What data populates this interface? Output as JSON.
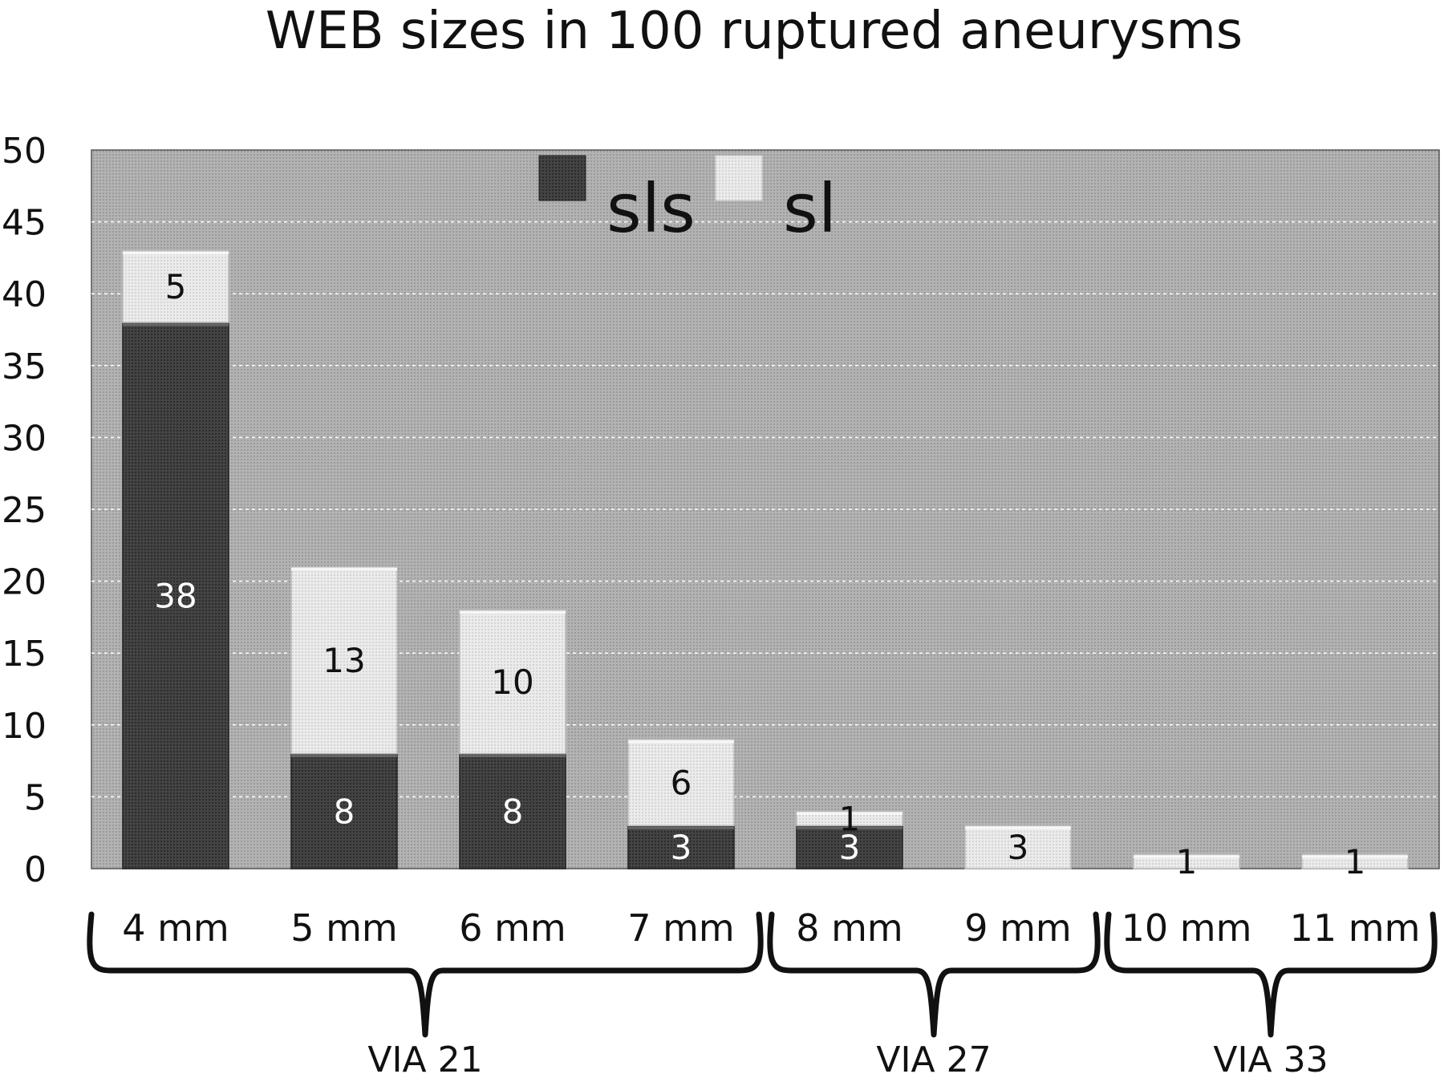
{
  "chart_data": {
    "type": "bar",
    "stacked": true,
    "title": "WEB sizes in 100 ruptured aneurysms",
    "categories": [
      "4 mm",
      "5 mm",
      "6 mm",
      "7 mm",
      "8 mm",
      "9 mm",
      "10 mm",
      "11 mm"
    ],
    "series": [
      {
        "name": "sls",
        "color": "#3a3a3a",
        "values": [
          38,
          8,
          8,
          3,
          3,
          0,
          0,
          0
        ]
      },
      {
        "name": "sl",
        "color": "#e4e4e4",
        "values": [
          5,
          13,
          10,
          6,
          1,
          3,
          1,
          1
        ]
      }
    ],
    "data_labels": {
      "sls": [
        "38",
        "8",
        "8",
        "3",
        "3",
        "",
        "",
        ""
      ],
      "sl": [
        "5",
        "13",
        "10",
        "6",
        "1",
        "3",
        "1",
        "1"
      ]
    },
    "groups": [
      {
        "label": "VIA 21",
        "categories": [
          "4 mm",
          "5 mm",
          "6 mm",
          "7 mm"
        ]
      },
      {
        "label": "VIA 27",
        "categories": [
          "8 mm",
          "9 mm"
        ]
      },
      {
        "label": "VIA 33",
        "categories": [
          "10 mm",
          "11 mm"
        ]
      }
    ],
    "ylim": [
      0,
      50
    ],
    "yticks": [
      "0",
      "5",
      "10",
      "15",
      "20",
      "25",
      "30",
      "35",
      "40",
      "45",
      "50"
    ],
    "grid": true,
    "legend_position": "top-center",
    "plot_background": "#a9a9a9"
  }
}
